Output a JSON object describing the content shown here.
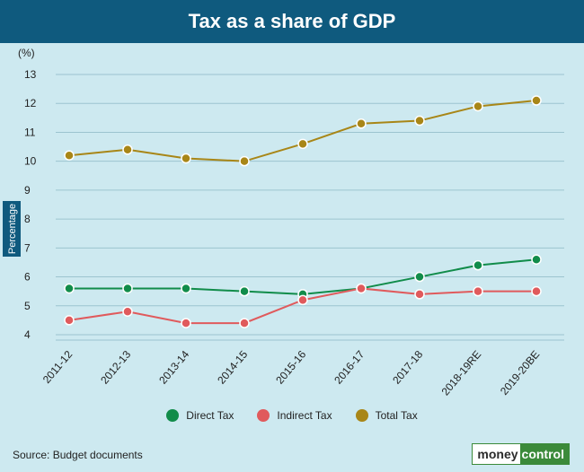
{
  "header": {
    "title": "Tax as a share of GDP"
  },
  "chart_data": {
    "type": "line",
    "title": "Tax as a share of GDP",
    "unit_label": "(%)",
    "ylabel": "Percentage",
    "xlabel": "",
    "ylim": [
      4,
      13
    ],
    "yticks": [
      4,
      5,
      6,
      7,
      8,
      9,
      10,
      11,
      12,
      13
    ],
    "grid": true,
    "legend_position": "bottom",
    "categories": [
      "2011-12",
      "2012-13",
      "2013-14",
      "2014-15",
      "2015-16",
      "2016-17",
      "2017-18",
      "2018-19RE",
      "2019-20BE"
    ],
    "series": [
      {
        "name": "Direct Tax",
        "color": "#118c4a",
        "values": [
          5.6,
          5.6,
          5.6,
          5.5,
          5.4,
          5.6,
          6.0,
          6.4,
          6.6
        ]
      },
      {
        "name": "Indirect Tax",
        "color": "#e05a5c",
        "values": [
          4.5,
          4.8,
          4.4,
          4.4,
          5.2,
          5.6,
          5.4,
          5.5,
          5.5
        ]
      },
      {
        "name": "Total Tax",
        "color": "#a88617",
        "values": [
          10.2,
          10.4,
          10.1,
          10.0,
          10.6,
          11.3,
          11.4,
          11.9,
          12.1
        ]
      }
    ]
  },
  "footer": {
    "source": "Source: Budget documents",
    "brand_part1": "money",
    "brand_part2": "control"
  }
}
